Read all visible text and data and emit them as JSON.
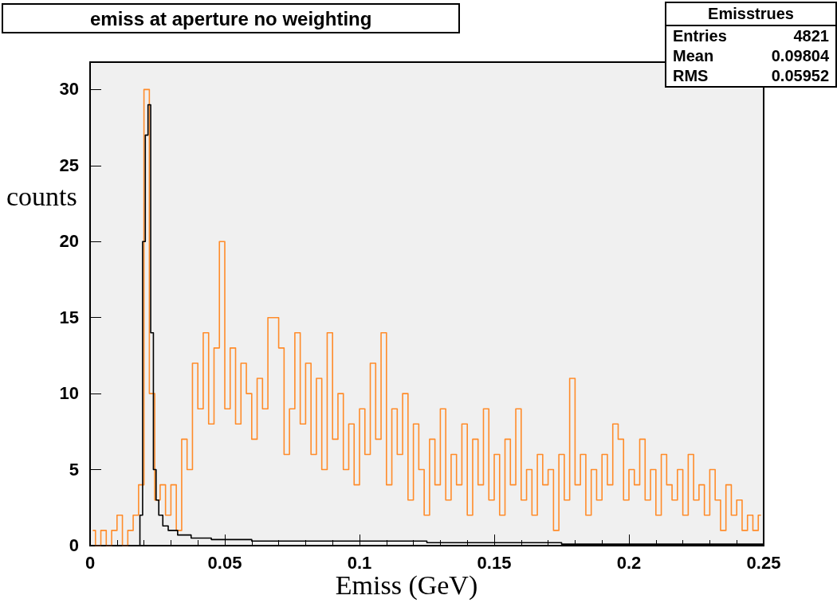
{
  "chart_data": {
    "type": "step",
    "title": "emiss at aperture no weighting",
    "xlabel": "Emiss (GeV)",
    "ylabel": "counts",
    "xlim": [
      0,
      0.25
    ],
    "xticks": [
      0,
      {
        "value": 0.01,
        "label": null
      },
      {
        "value": 0.02,
        "label": null
      },
      {
        "value": 0.03,
        "label": null
      },
      {
        "value": 0.04,
        "label": null
      },
      0.05,
      {
        "value": 0.06,
        "label": null
      },
      {
        "value": 0.07,
        "label": null
      },
      {
        "value": 0.08,
        "label": null
      },
      {
        "value": 0.09,
        "label": null
      },
      0.1,
      {
        "value": 0.11,
        "label": null
      },
      {
        "value": 0.12,
        "label": null
      },
      {
        "value": 0.13,
        "label": null
      },
      {
        "value": 0.14,
        "label": null
      },
      0.15,
      {
        "value": 0.16,
        "label": null
      },
      {
        "value": 0.17,
        "label": null
      },
      {
        "value": 0.18,
        "label": null
      },
      {
        "value": 0.19,
        "label": null
      },
      0.2,
      {
        "value": 0.21,
        "label": null
      },
      {
        "value": 0.22,
        "label": null
      },
      {
        "value": 0.23,
        "label": null
      },
      {
        "value": 0.24,
        "label": null
      },
      0.25
    ],
    "ylim": [
      0,
      31.8
    ],
    "yticks": [
      0,
      5,
      10,
      15,
      20,
      25,
      30
    ],
    "grid": false,
    "annotations": [
      "Emisstrues",
      "Entries",
      "4821",
      "Mean",
      "0.09804",
      "RMS",
      "0.05952"
    ],
    "series": [
      {
        "color": "#ff8c2a",
        "x": [
          0.001,
          0.003,
          0.005,
          0.007,
          0.009,
          0.011,
          0.013,
          0.015,
          0.017,
          0.019,
          0.021,
          0.023,
          0.025,
          0.027,
          0.029,
          0.031,
          0.033,
          0.035,
          0.037,
          0.039,
          0.041,
          0.043,
          0.045,
          0.047,
          0.049,
          0.051,
          0.053,
          0.055,
          0.057,
          0.059,
          0.061,
          0.063,
          0.065,
          0.067,
          0.069,
          0.071,
          0.073,
          0.075,
          0.077,
          0.079,
          0.081,
          0.083,
          0.085,
          0.087,
          0.089,
          0.091,
          0.093,
          0.095,
          0.097,
          0.099,
          0.101,
          0.103,
          0.105,
          0.107,
          0.109,
          0.111,
          0.113,
          0.115,
          0.117,
          0.119,
          0.121,
          0.123,
          0.125,
          0.127,
          0.129,
          0.131,
          0.133,
          0.135,
          0.137,
          0.139,
          0.141,
          0.143,
          0.145,
          0.147,
          0.149,
          0.151,
          0.153,
          0.155,
          0.157,
          0.159,
          0.161,
          0.163,
          0.165,
          0.167,
          0.169,
          0.171,
          0.173,
          0.175,
          0.177,
          0.179,
          0.181,
          0.183,
          0.185,
          0.187,
          0.189,
          0.191,
          0.193,
          0.195,
          0.197,
          0.199,
          0.201,
          0.203,
          0.205,
          0.207,
          0.209,
          0.211,
          0.213,
          0.215,
          0.217,
          0.219,
          0.221,
          0.223,
          0.225,
          0.227,
          0.229,
          0.231,
          0.233,
          0.235,
          0.237,
          0.239,
          0.241,
          0.243,
          0.245,
          0.247,
          0.249
        ],
        "values": [
          1,
          0,
          1,
          0,
          1,
          2,
          0,
          1,
          2,
          4,
          30,
          10,
          3,
          4,
          2,
          4,
          1,
          7,
          5,
          12,
          9,
          14,
          8,
          13,
          20,
          9,
          13,
          8,
          12,
          10,
          7,
          11,
          9,
          15,
          15,
          13,
          6,
          9,
          14,
          8,
          12,
          6,
          11,
          5,
          14,
          7,
          10,
          5,
          8,
          4,
          9,
          6,
          12,
          7,
          14,
          4,
          9,
          6,
          10,
          3,
          8,
          5,
          2,
          7,
          4,
          9,
          3,
          6,
          4,
          8,
          2,
          7,
          4,
          9,
          3,
          6,
          2,
          7,
          4,
          9,
          3,
          5,
          2,
          6,
          4,
          5,
          1,
          6,
          3,
          11,
          4,
          6,
          2,
          5,
          3,
          6,
          4,
          8,
          7,
          3,
          5,
          4,
          7,
          3,
          5,
          2,
          6,
          4,
          3,
          5,
          2,
          6,
          3,
          4,
          2,
          5,
          3,
          1,
          4,
          2,
          3,
          1,
          2,
          1,
          2
        ]
      },
      {
        "color": "#000000",
        "x": [
          0,
          0.018,
          0.019,
          0.02,
          0.021,
          0.022,
          0.023,
          0.024,
          0.025,
          0.026,
          0.028,
          0.03,
          0.035,
          0.04,
          0.05,
          0.07,
          0.1,
          0.15,
          0.2,
          0.25
        ],
        "values": [
          0,
          0,
          2,
          20,
          27,
          29,
          14,
          5,
          3,
          2,
          1.3,
          1,
          0.7,
          0.5,
          0.4,
          0.3,
          0.3,
          0.2,
          0.1,
          0.1
        ]
      }
    ]
  }
}
